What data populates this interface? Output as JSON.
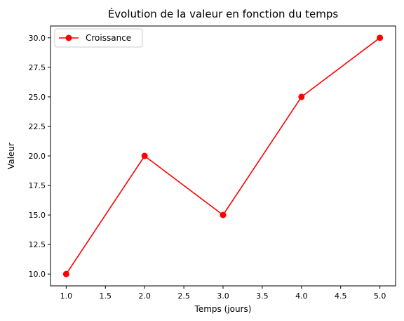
{
  "chart_data": {
    "type": "line",
    "title": "Évolution de la valeur en fonction du temps",
    "xlabel": "Temps (jours)",
    "ylabel": "Valeur",
    "x": [
      1,
      2,
      3,
      4,
      5
    ],
    "series": [
      {
        "name": "Croissance",
        "values": [
          10,
          20,
          15,
          25,
          30
        ],
        "color": "#ff0000",
        "marker": "circle"
      }
    ],
    "xlim": [
      0.8,
      5.2
    ],
    "ylim": [
      9.0,
      31.0
    ],
    "xticks": [
      "1.0",
      "1.5",
      "2.0",
      "2.5",
      "3.0",
      "3.5",
      "4.0",
      "4.5",
      "5.0"
    ],
    "yticks": [
      "10.0",
      "12.5",
      "15.0",
      "17.5",
      "20.0",
      "22.5",
      "25.0",
      "27.5",
      "30.0"
    ],
    "grid": false,
    "legend_position": "upper-left"
  }
}
